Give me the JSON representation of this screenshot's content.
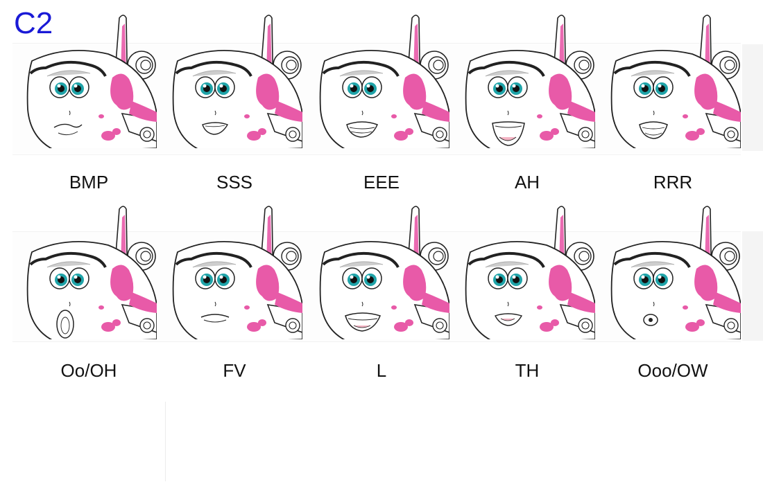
{
  "sheet_label": "C2",
  "rows": [
    {
      "faces": [
        {
          "label": "BMP",
          "mouth": "closed"
        },
        {
          "label": "SSS",
          "mouth": "teeth-small"
        },
        {
          "label": "EEE",
          "mouth": "teeth-wide"
        },
        {
          "label": "AH",
          "mouth": "open"
        },
        {
          "label": "RRR",
          "mouth": "rounded-teeth"
        }
      ]
    },
    {
      "faces": [
        {
          "label": "Oo/OH",
          "mouth": "oval"
        },
        {
          "label": "FV",
          "mouth": "lip-bite"
        },
        {
          "label": "L",
          "mouth": "teeth-tongue"
        },
        {
          "label": "TH",
          "mouth": "tongue"
        },
        {
          "label": "Ooo/OW",
          "mouth": "pucker"
        }
      ]
    }
  ],
  "colors": {
    "label": "#1a1ad6",
    "pink": "#e85aa8",
    "eye": "#1fa3a8",
    "outline": "#222222"
  }
}
